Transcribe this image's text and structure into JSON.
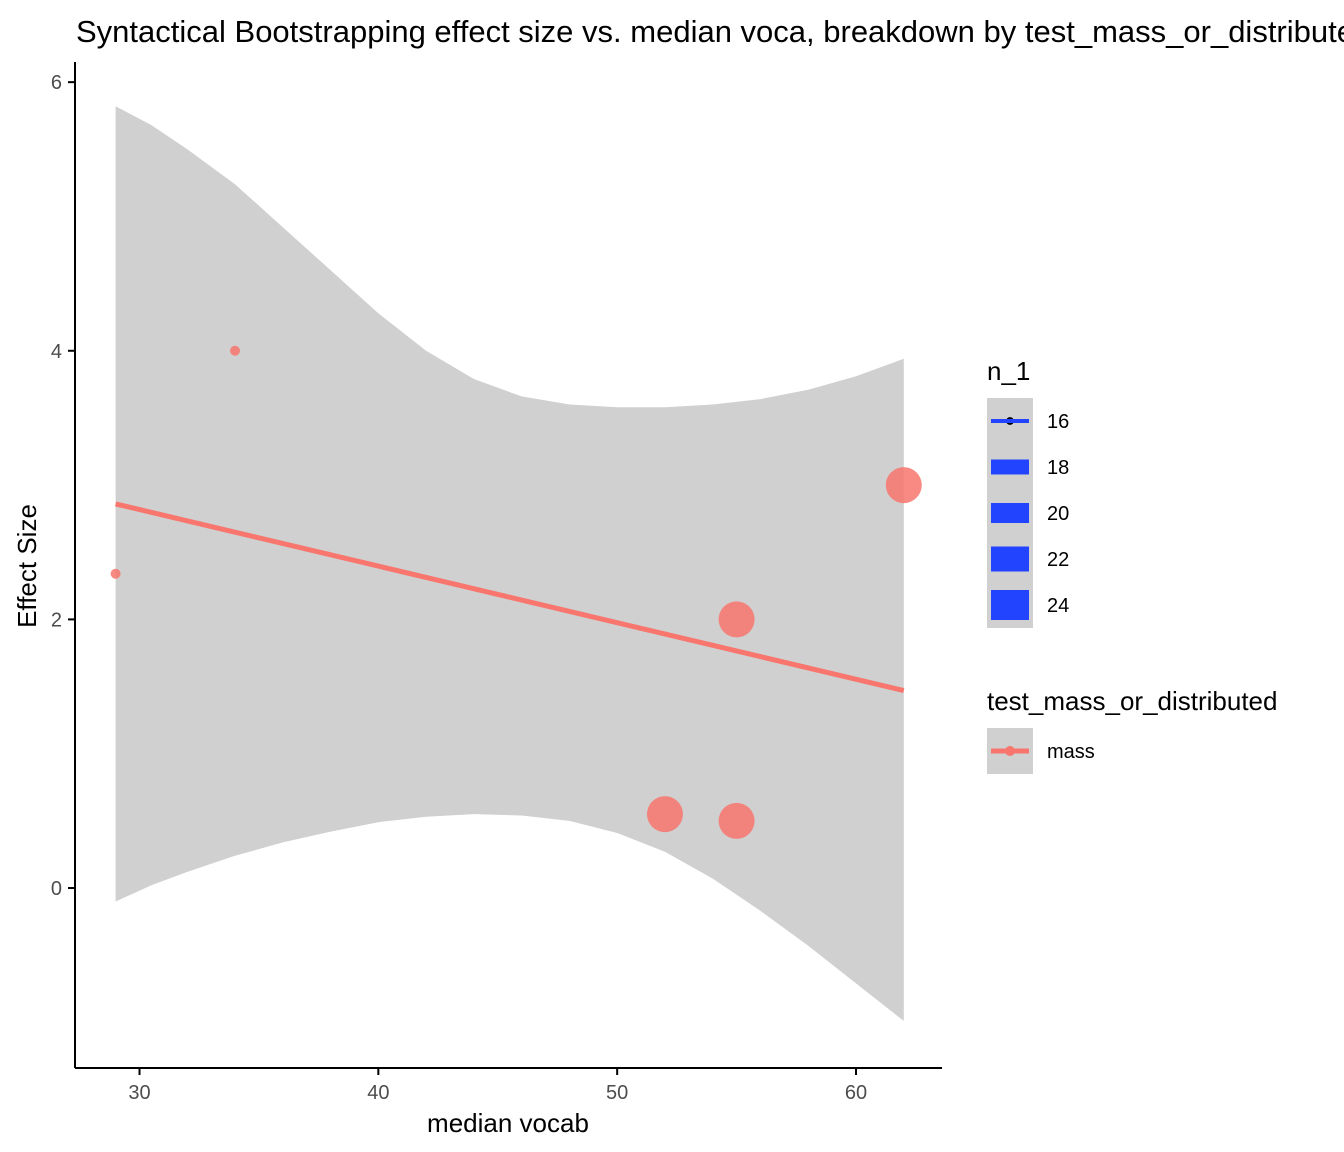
{
  "colors": {
    "series": "#f8766d",
    "band": "#d0d0d0",
    "size_legend_key": "#2244ff",
    "axis": "#000000",
    "tick_text": "#4d4d4d"
  },
  "chart_data": {
    "type": "scatter",
    "title": "Syntactical Bootstrapping effect size vs. median voca, breakdown by test_mass_or_distributed",
    "xlabel": "median vocab",
    "ylabel": "Effect Size",
    "xlim": [
      27.3,
      63.6
    ],
    "ylim": [
      -1.34,
      6.15
    ],
    "x_ticks": [
      30,
      40,
      50,
      60
    ],
    "y_ticks": [
      0,
      2,
      4,
      6
    ],
    "grid": false,
    "series": [
      {
        "name": "mass",
        "points": [
          {
            "x": 29,
            "y": 2.34,
            "n_1": 16
          },
          {
            "x": 34,
            "y": 4.0,
            "n_1": 16
          },
          {
            "x": 52,
            "y": 0.55,
            "n_1": 24
          },
          {
            "x": 55,
            "y": 0.5,
            "n_1": 24
          },
          {
            "x": 55,
            "y": 2.0,
            "n_1": 24
          },
          {
            "x": 62,
            "y": 3.0,
            "n_1": 24
          }
        ]
      }
    ],
    "smooth": {
      "method": "lm",
      "line": [
        {
          "x": 29,
          "y": 2.86
        },
        {
          "x": 62,
          "y": 1.47
        }
      ],
      "band": [
        {
          "x": 29,
          "upper": 5.82,
          "lower": -0.1
        },
        {
          "x": 30.5,
          "upper": 5.68,
          "lower": 0.02
        },
        {
          "x": 32,
          "upper": 5.5,
          "lower": 0.12
        },
        {
          "x": 34,
          "upper": 5.24,
          "lower": 0.24
        },
        {
          "x": 36,
          "upper": 4.92,
          "lower": 0.34
        },
        {
          "x": 38,
          "upper": 4.6,
          "lower": 0.42
        },
        {
          "x": 40,
          "upper": 4.28,
          "lower": 0.49
        },
        {
          "x": 42,
          "upper": 4.0,
          "lower": 0.53
        },
        {
          "x": 44,
          "upper": 3.79,
          "lower": 0.55
        },
        {
          "x": 46,
          "upper": 3.66,
          "lower": 0.54
        },
        {
          "x": 48,
          "upper": 3.6,
          "lower": 0.5
        },
        {
          "x": 50,
          "upper": 3.58,
          "lower": 0.41
        },
        {
          "x": 52,
          "upper": 3.58,
          "lower": 0.27
        },
        {
          "x": 54,
          "upper": 3.6,
          "lower": 0.07
        },
        {
          "x": 56,
          "upper": 3.64,
          "lower": -0.17
        },
        {
          "x": 58,
          "upper": 3.71,
          "lower": -0.43
        },
        {
          "x": 60,
          "upper": 3.81,
          "lower": -0.71
        },
        {
          "x": 62,
          "upper": 3.94,
          "lower": -0.99
        }
      ]
    },
    "legends": [
      {
        "title": "n_1",
        "kind": "size",
        "entries": [
          {
            "label": "16",
            "value": 16
          },
          {
            "label": "18",
            "value": 18
          },
          {
            "label": "20",
            "value": 20
          },
          {
            "label": "22",
            "value": 22
          },
          {
            "label": "24",
            "value": 24
          }
        ]
      },
      {
        "title": "test_mass_or_distributed",
        "kind": "color",
        "entries": [
          {
            "label": "mass"
          }
        ]
      }
    ],
    "legend_position": "right"
  }
}
